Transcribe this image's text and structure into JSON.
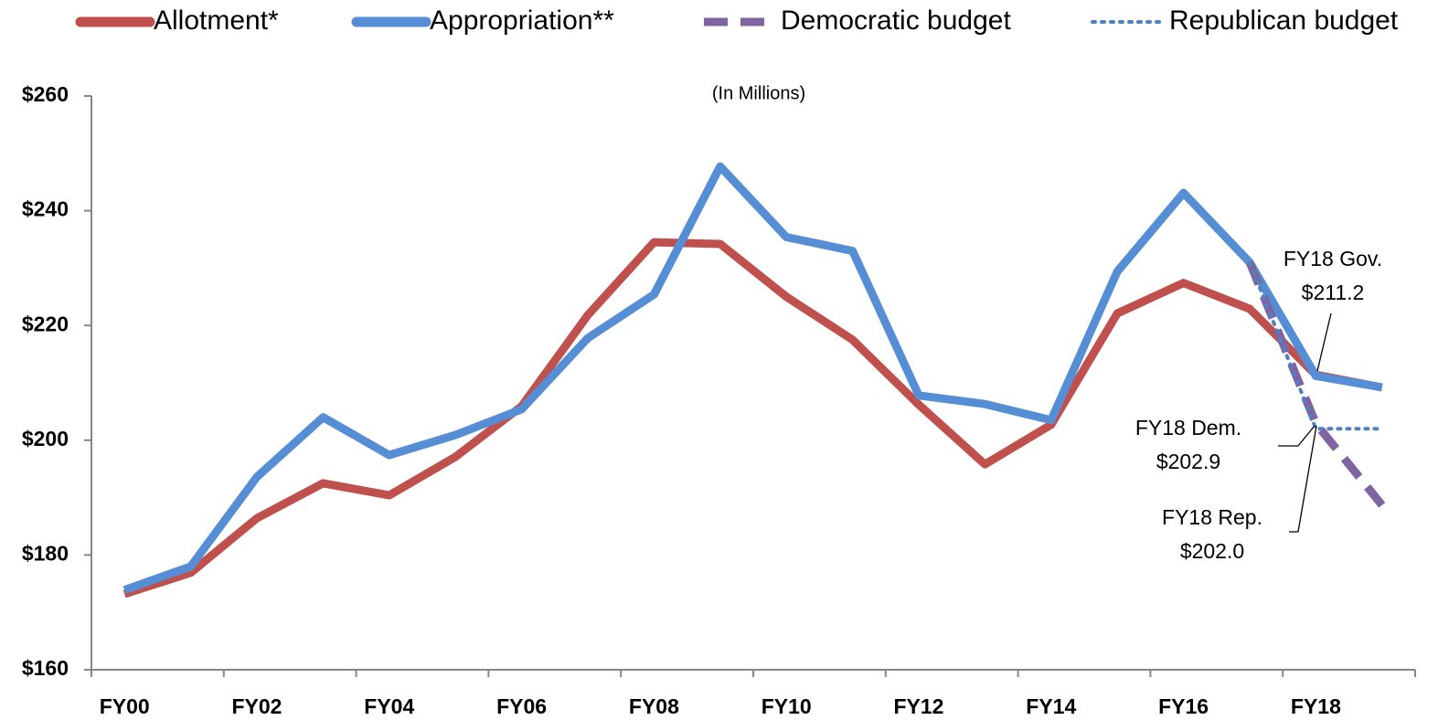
{
  "chart_data": {
    "type": "line",
    "subtitle": "(In Millions)",
    "categories": [
      "FY00",
      null,
      "FY02",
      null,
      "FY04",
      null,
      "FY06",
      null,
      "FY08",
      null,
      "FY10",
      null,
      "FY12",
      null,
      "FY14",
      null,
      "FY16",
      null,
      "FY18",
      null
    ],
    "series": [
      {
        "name": "Allotment*",
        "color": "#c0504d",
        "style": "solid",
        "values": [
          173.2,
          176.9,
          186.4,
          192.5,
          190.4,
          197.1,
          205.9,
          221.8,
          234.5,
          234.2,
          225.0,
          217.5,
          206.2,
          195.8,
          202.7,
          222.1,
          227.4,
          222.9,
          211.4,
          209.2
        ]
      },
      {
        "name": "Appropriation**",
        "color": "#558ed5",
        "style": "solid",
        "values": [
          173.9,
          178.0,
          193.6,
          204.0,
          197.4,
          200.9,
          205.4,
          217.8,
          225.4,
          247.7,
          235.4,
          233.0,
          207.8,
          206.3,
          203.5,
          229.4,
          243.1,
          231.0,
          211.2,
          209.2
        ]
      },
      {
        "name": "Democratic budget",
        "color": "#8064a2",
        "style": "dashed",
        "values": [
          null,
          null,
          null,
          null,
          null,
          null,
          null,
          null,
          null,
          null,
          null,
          null,
          null,
          null,
          null,
          null,
          null,
          231.0,
          202.9,
          188.7
        ]
      },
      {
        "name": "Republican budget",
        "color": "#4f81bd",
        "style": "dotted",
        "values": [
          null,
          null,
          null,
          null,
          null,
          null,
          null,
          null,
          null,
          null,
          null,
          null,
          null,
          null,
          null,
          null,
          null,
          231.0,
          202.0,
          202.0
        ]
      }
    ],
    "ylim": [
      160,
      260
    ],
    "yticks": [
      {
        "value": 160,
        "label": "$160"
      },
      {
        "value": 180,
        "label": "$180"
      },
      {
        "value": 200,
        "label": "$200"
      },
      {
        "value": 220,
        "label": "$220"
      },
      {
        "value": 240,
        "label": "$240"
      },
      {
        "value": 260,
        "label": "$260"
      }
    ],
    "grid": false,
    "legend": "top",
    "annotations": [
      {
        "text": [
          "FY18 Gov.",
          "$211.2"
        ]
      },
      {
        "text": [
          "FY18 Dem.",
          "$202.9"
        ]
      },
      {
        "text": [
          "FY18 Rep.",
          "$202.0"
        ]
      }
    ]
  }
}
